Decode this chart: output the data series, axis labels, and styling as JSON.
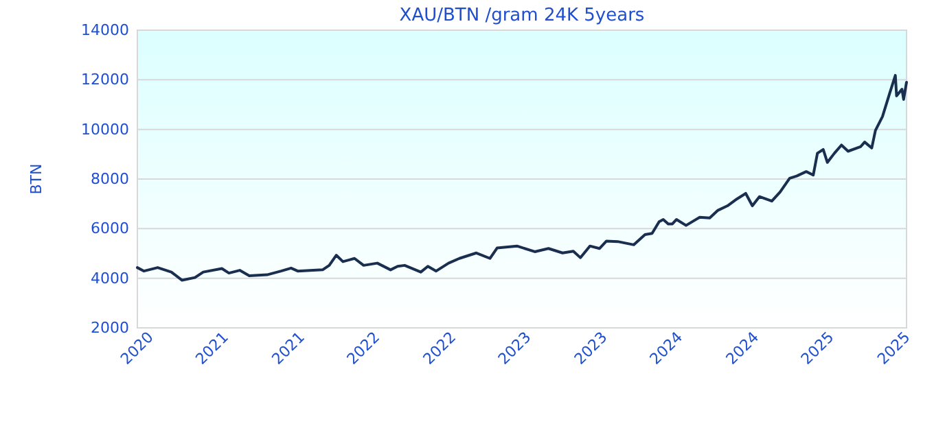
{
  "chart_data": {
    "type": "line",
    "title": "XAU/BTN /gram 24K 5years",
    "ylabel": "BTN",
    "xlim": [
      "2020-09-01",
      "2025-10-01"
    ],
    "xticks": [
      {
        "value": "2020-09-01",
        "label": "2020"
      },
      {
        "value": "2021-03-01",
        "label": "2021"
      },
      {
        "value": "2021-09-01",
        "label": "2021"
      },
      {
        "value": "2022-03-01",
        "label": "2022"
      },
      {
        "value": "2022-09-01",
        "label": "2022"
      },
      {
        "value": "2023-03-01",
        "label": "2023"
      },
      {
        "value": "2023-09-01",
        "label": "2023"
      },
      {
        "value": "2024-03-01",
        "label": "2024"
      },
      {
        "value": "2024-09-01",
        "label": "2024"
      },
      {
        "value": "2025-03-01",
        "label": "2025"
      },
      {
        "value": "2025-09-01",
        "label": "2025"
      }
    ],
    "ylim": [
      2000,
      14000
    ],
    "yticks": [
      2000,
      4000,
      6000,
      8000,
      10000,
      12000,
      14000
    ],
    "grid": "y",
    "series": [
      {
        "color": "#1a2e50",
        "x": [
          "2020-09-01",
          "2020-09-17",
          "2020-10-20",
          "2020-11-22",
          "2020-12-18",
          "2021-01-18",
          "2021-02-07",
          "2021-03-24",
          "2021-04-10",
          "2021-05-06",
          "2021-05-29",
          "2021-07-11",
          "2021-08-14",
          "2021-09-07",
          "2021-09-23",
          "2021-10-30",
          "2021-11-22",
          "2021-12-08",
          "2021-12-25",
          "2022-01-10",
          "2022-02-07",
          "2022-03-01",
          "2022-04-03",
          "2022-05-05",
          "2022-05-22",
          "2022-06-08",
          "2022-06-24",
          "2022-07-17",
          "2022-08-03",
          "2022-08-23",
          "2022-09-22",
          "2022-10-18",
          "2022-11-28",
          "2022-12-31",
          "2023-01-17",
          "2023-03-06",
          "2023-04-18",
          "2023-05-21",
          "2023-06-24",
          "2023-07-20",
          "2023-08-06",
          "2023-08-29",
          "2023-09-21",
          "2023-10-08",
          "2023-11-04",
          "2023-12-13",
          "2024-01-09",
          "2024-01-26",
          "2024-02-12",
          "2024-02-22",
          "2024-03-05",
          "2024-03-15",
          "2024-03-25",
          "2024-04-17",
          "2024-05-20",
          "2024-06-13",
          "2024-07-03",
          "2024-07-26",
          "2024-08-18",
          "2024-09-08",
          "2024-09-24",
          "2024-10-11",
          "2024-11-10",
          "2024-11-30",
          "2024-12-23",
          "2025-01-09",
          "2025-02-01",
          "2025-02-18",
          "2025-02-28",
          "2025-03-14",
          "2025-03-24",
          "2025-04-10",
          "2025-04-27",
          "2025-05-13",
          "2025-06-12",
          "2025-06-22",
          "2025-07-09",
          "2025-07-18",
          "2025-08-04",
          "2025-08-21",
          "2025-09-04",
          "2025-09-07",
          "2025-09-20",
          "2025-09-24",
          "2025-10-01"
        ],
        "values": [
          4430,
          4290,
          4430,
          4250,
          3920,
          4030,
          4250,
          4390,
          4210,
          4320,
          4100,
          4140,
          4290,
          4410,
          4290,
          4320,
          4340,
          4520,
          4930,
          4670,
          4800,
          4520,
          4610,
          4340,
          4480,
          4520,
          4410,
          4250,
          4480,
          4290,
          4610,
          4800,
          5020,
          4800,
          5220,
          5300,
          5070,
          5200,
          5020,
          5090,
          4830,
          5300,
          5200,
          5500,
          5480,
          5350,
          5760,
          5810,
          6280,
          6370,
          6190,
          6190,
          6370,
          6130,
          6460,
          6430,
          6740,
          6920,
          7200,
          7420,
          6920,
          7290,
          7110,
          7480,
          8030,
          8120,
          8300,
          8160,
          9040,
          9190,
          8670,
          9040,
          9370,
          9120,
          9300,
          9490,
          9250,
          9960,
          10520,
          11440,
          12180,
          11350,
          11620,
          11210,
          11900
        ]
      }
    ]
  }
}
